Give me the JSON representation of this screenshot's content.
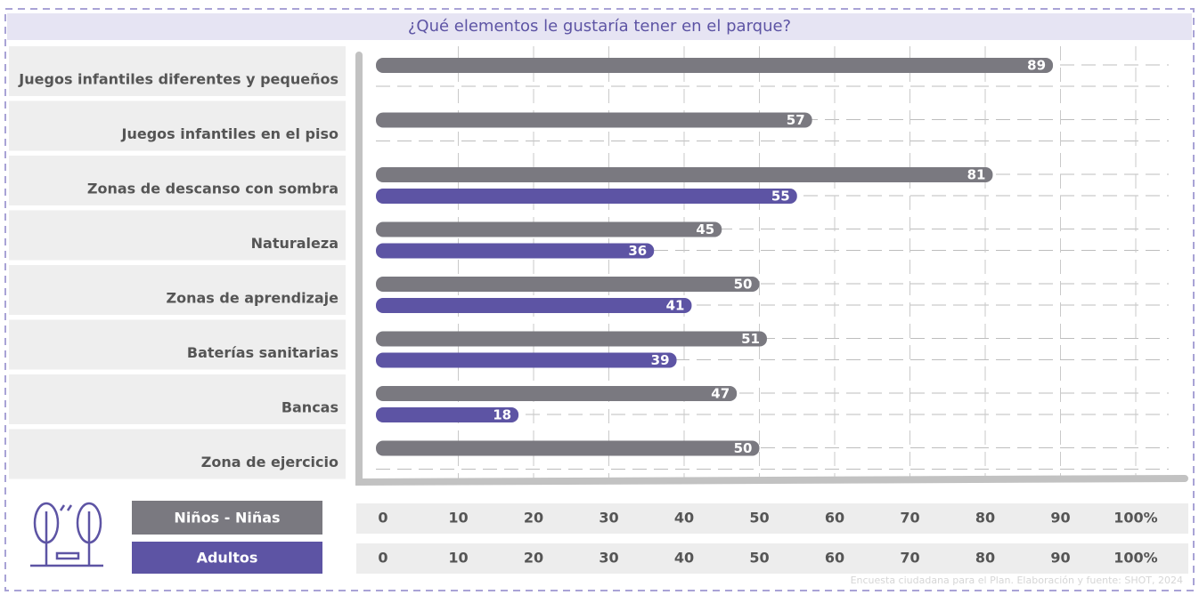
{
  "chart_data": {
    "type": "bar",
    "orientation": "horizontal",
    "title": "¿Qué elementos le gustaría tener en el parque?",
    "categories": [
      "Juegos infantiles diferentes y pequeños",
      "Juegos infantiles en el piso",
      "Zonas de descanso con sombra",
      "Naturaleza",
      "Zonas de aprendizaje",
      "Baterías sanitarias",
      "Bancas",
      "Zona de ejercicio"
    ],
    "series": [
      {
        "name": "Niños - Niñas",
        "color": "#7a7980",
        "values": [
          89,
          57,
          81,
          45,
          50,
          51,
          47,
          50
        ]
      },
      {
        "name": "Adultos",
        "color": "#5d54a4",
        "values": [
          null,
          null,
          55,
          36,
          41,
          39,
          18,
          null
        ]
      }
    ],
    "xlim": [
      0,
      100
    ],
    "xticks": [
      0,
      10,
      20,
      30,
      40,
      50,
      60,
      70,
      80,
      90,
      {
        "value": 100,
        "label": "100%"
      }
    ],
    "grid": true,
    "source": "Encuesta ciudadana para el Plan. Elaboración y fuente: SHOT, 2024"
  }
}
